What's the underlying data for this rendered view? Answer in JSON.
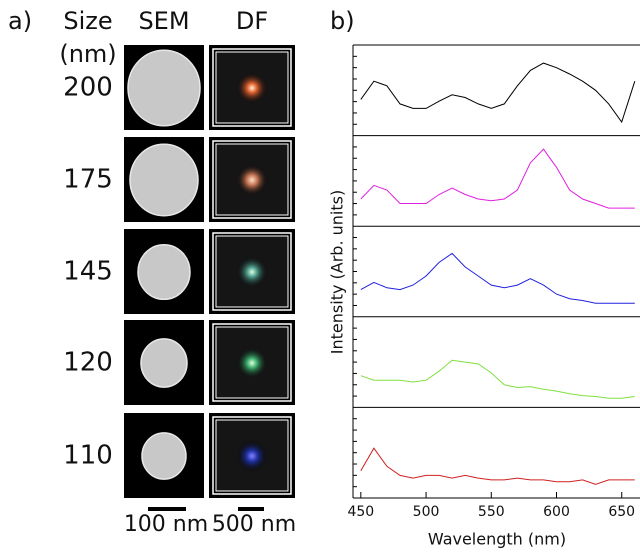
{
  "panel_a": {
    "label": "a)",
    "size_header": "Size",
    "size_unit": "(nm)",
    "sem_header": "SEM",
    "df_header": "DF",
    "sizes": [
      "200",
      "175",
      "145",
      "120",
      "110"
    ],
    "scale_bars": [
      "100 nm",
      "500 nm"
    ]
  },
  "chart_data": {
    "type": "line",
    "panel_label": "b)",
    "ylabel": "Intensity (Arb. units)",
    "xlabel": "Wavelength (nm)",
    "x": [
      450,
      460,
      470,
      480,
      490,
      500,
      510,
      520,
      530,
      540,
      550,
      560,
      570,
      580,
      590,
      600,
      610,
      620,
      630,
      640,
      650,
      660
    ],
    "xlim": [
      444,
      664
    ],
    "xticks": [
      450,
      500,
      550,
      600,
      650
    ],
    "ylim": [
      0,
      1
    ],
    "series": [
      {
        "color": "#000000",
        "values": [
          0.4,
          0.6,
          0.55,
          0.35,
          0.3,
          0.3,
          0.38,
          0.45,
          0.42,
          0.35,
          0.3,
          0.35,
          0.55,
          0.72,
          0.8,
          0.75,
          0.68,
          0.6,
          0.5,
          0.35,
          0.15,
          0.6
        ]
      },
      {
        "color": "#e020e0",
        "values": [
          0.3,
          0.45,
          0.4,
          0.25,
          0.25,
          0.25,
          0.35,
          0.42,
          0.35,
          0.3,
          0.28,
          0.3,
          0.4,
          0.7,
          0.85,
          0.65,
          0.4,
          0.3,
          0.25,
          0.2,
          0.2,
          0.2
        ]
      },
      {
        "color": "#2020e0",
        "values": [
          0.3,
          0.38,
          0.32,
          0.3,
          0.35,
          0.45,
          0.6,
          0.7,
          0.55,
          0.45,
          0.35,
          0.32,
          0.35,
          0.42,
          0.35,
          0.25,
          0.2,
          0.18,
          0.15,
          0.15,
          0.15,
          0.15
        ]
      },
      {
        "color": "#80e040",
        "values": [
          0.35,
          0.3,
          0.3,
          0.3,
          0.28,
          0.3,
          0.4,
          0.52,
          0.5,
          0.48,
          0.38,
          0.25,
          0.22,
          0.23,
          0.2,
          0.18,
          0.15,
          0.13,
          0.12,
          0.1,
          0.1,
          0.12
        ]
      },
      {
        "color": "#d02020",
        "values": [
          0.3,
          0.55,
          0.35,
          0.25,
          0.22,
          0.25,
          0.25,
          0.22,
          0.25,
          0.22,
          0.2,
          0.2,
          0.22,
          0.2,
          0.2,
          0.18,
          0.18,
          0.2,
          0.15,
          0.2,
          0.2,
          0.2
        ]
      }
    ]
  }
}
